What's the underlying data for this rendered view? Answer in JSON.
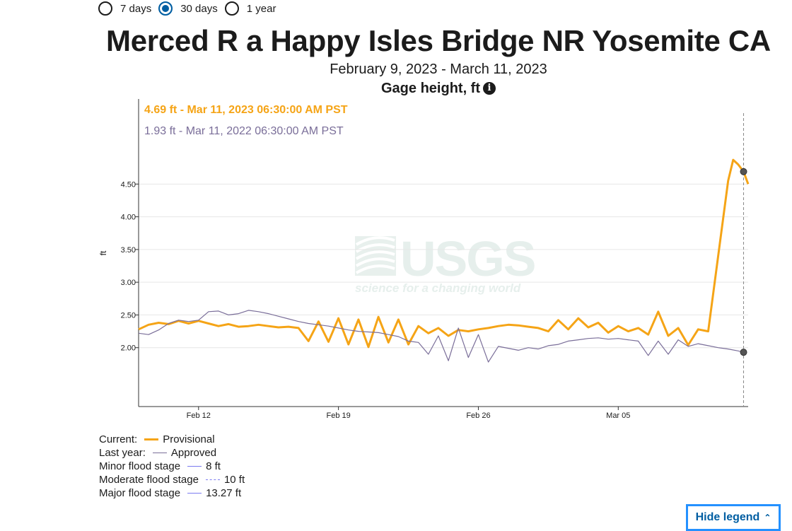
{
  "time_range": {
    "options": [
      {
        "label": "7 days",
        "selected": false
      },
      {
        "label": "30 days",
        "selected": true
      },
      {
        "label": "1 year",
        "selected": false
      }
    ]
  },
  "header": {
    "title": "Merced R a Happy Isles Bridge NR Yosemite CA",
    "subtitle": "February 9, 2023 - March 11, 2023",
    "parameter": "Gage height, ft",
    "info_icon": "info-icon"
  },
  "tooltip": {
    "current": "4.69 ft - Mar 11, 2023 06:30:00 AM PST",
    "last_year": "1.93 ft - Mar 11, 2022 06:30:00 AM PST"
  },
  "watermark": {
    "logo": "USGS",
    "tagline": "science for a changing world"
  },
  "colors": {
    "current": "#f5a416",
    "last_year": "#7a6e99",
    "flood": "#7b7bf0",
    "grid": "#e6e6e6",
    "watermark": "#e6efec"
  },
  "chart_data": {
    "type": "line",
    "ylabel": "ft",
    "y_ticks": [
      2.0,
      2.5,
      3.0,
      3.5,
      4.0,
      4.5
    ],
    "y_tick_labels": [
      "2.00",
      "2.50",
      "3.00",
      "3.50",
      "4.00",
      "4.50"
    ],
    "ylim": [
      1.1,
      5.8
    ],
    "xlim": [
      "2023-02-09",
      "2023-03-11"
    ],
    "x_ticks": [
      {
        "date": "2023-02-12",
        "label": "Feb 12"
      },
      {
        "date": "2023-02-19",
        "label": "Feb 19"
      },
      {
        "date": "2023-02-26",
        "label": "Feb 26"
      },
      {
        "date": "2023-03-05",
        "label": "Mar 05"
      }
    ],
    "cursor_date": "2023-03-11 06:30",
    "grid": true,
    "series": [
      {
        "name": "Provisional",
        "key": "current",
        "points": [
          [
            "2023-02-09 00:00",
            2.28
          ],
          [
            "2023-02-09 12:00",
            2.35
          ],
          [
            "2023-02-10 00:00",
            2.38
          ],
          [
            "2023-02-10 12:00",
            2.36
          ],
          [
            "2023-02-11 00:00",
            2.41
          ],
          [
            "2023-02-11 12:00",
            2.37
          ],
          [
            "2023-02-12 00:00",
            2.41
          ],
          [
            "2023-02-12 12:00",
            2.37
          ],
          [
            "2023-02-13 00:00",
            2.33
          ],
          [
            "2023-02-13 12:00",
            2.36
          ],
          [
            "2023-02-14 00:00",
            2.32
          ],
          [
            "2023-02-14 12:00",
            2.33
          ],
          [
            "2023-02-15 00:00",
            2.35
          ],
          [
            "2023-02-15 12:00",
            2.33
          ],
          [
            "2023-02-16 00:00",
            2.31
          ],
          [
            "2023-02-16 12:00",
            2.32
          ],
          [
            "2023-02-17 00:00",
            2.3
          ],
          [
            "2023-02-17 12:00",
            2.1
          ],
          [
            "2023-02-18 00:00",
            2.4
          ],
          [
            "2023-02-18 12:00",
            2.09
          ],
          [
            "2023-02-19 00:00",
            2.45
          ],
          [
            "2023-02-19 12:00",
            2.05
          ],
          [
            "2023-02-20 00:00",
            2.43
          ],
          [
            "2023-02-20 12:00",
            2.01
          ],
          [
            "2023-02-21 00:00",
            2.47
          ],
          [
            "2023-02-21 12:00",
            2.08
          ],
          [
            "2023-02-22 00:00",
            2.43
          ],
          [
            "2023-02-22 12:00",
            2.05
          ],
          [
            "2023-02-23 00:00",
            2.33
          ],
          [
            "2023-02-23 12:00",
            2.22
          ],
          [
            "2023-02-24 00:00",
            2.3
          ],
          [
            "2023-02-24 12:00",
            2.18
          ],
          [
            "2023-02-25 00:00",
            2.27
          ],
          [
            "2023-02-25 12:00",
            2.25
          ],
          [
            "2023-02-26 00:00",
            2.28
          ],
          [
            "2023-02-26 12:00",
            2.3
          ],
          [
            "2023-02-27 00:00",
            2.33
          ],
          [
            "2023-02-27 12:00",
            2.35
          ],
          [
            "2023-02-28 00:00",
            2.34
          ],
          [
            "2023-02-28 12:00",
            2.32
          ],
          [
            "2023-03-01 00:00",
            2.3
          ],
          [
            "2023-03-01 12:00",
            2.25
          ],
          [
            "2023-03-02 00:00",
            2.42
          ],
          [
            "2023-03-02 12:00",
            2.28
          ],
          [
            "2023-03-03 00:00",
            2.45
          ],
          [
            "2023-03-03 12:00",
            2.31
          ],
          [
            "2023-03-04 00:00",
            2.38
          ],
          [
            "2023-03-04 12:00",
            2.23
          ],
          [
            "2023-03-05 00:00",
            2.33
          ],
          [
            "2023-03-05 12:00",
            2.25
          ],
          [
            "2023-03-06 00:00",
            2.3
          ],
          [
            "2023-03-06 12:00",
            2.2
          ],
          [
            "2023-03-07 00:00",
            2.55
          ],
          [
            "2023-03-07 12:00",
            2.18
          ],
          [
            "2023-03-08 00:00",
            2.3
          ],
          [
            "2023-03-08 12:00",
            2.04
          ],
          [
            "2023-03-09 00:00",
            2.28
          ],
          [
            "2023-03-09 12:00",
            2.25
          ],
          [
            "2023-03-10 00:00",
            3.4
          ],
          [
            "2023-03-10 12:00",
            4.55
          ],
          [
            "2023-03-10 18:00",
            4.87
          ],
          [
            "2023-03-11 00:00",
            4.8
          ],
          [
            "2023-03-11 06:30",
            4.69
          ],
          [
            "2023-03-11 12:00",
            4.5
          ]
        ]
      },
      {
        "name": "Approved",
        "key": "last_year",
        "points": [
          [
            "2023-02-09 00:00",
            2.22
          ],
          [
            "2023-02-09 12:00",
            2.2
          ],
          [
            "2023-02-10 00:00",
            2.27
          ],
          [
            "2023-02-10 12:00",
            2.37
          ],
          [
            "2023-02-11 00:00",
            2.42
          ],
          [
            "2023-02-11 12:00",
            2.4
          ],
          [
            "2023-02-12 00:00",
            2.42
          ],
          [
            "2023-02-12 12:00",
            2.55
          ],
          [
            "2023-02-13 00:00",
            2.56
          ],
          [
            "2023-02-13 12:00",
            2.5
          ],
          [
            "2023-02-14 00:00",
            2.52
          ],
          [
            "2023-02-14 12:00",
            2.57
          ],
          [
            "2023-02-15 00:00",
            2.55
          ],
          [
            "2023-02-15 12:00",
            2.52
          ],
          [
            "2023-02-16 00:00",
            2.48
          ],
          [
            "2023-02-16 12:00",
            2.44
          ],
          [
            "2023-02-17 00:00",
            2.4
          ],
          [
            "2023-02-17 12:00",
            2.37
          ],
          [
            "2023-02-18 00:00",
            2.35
          ],
          [
            "2023-02-18 12:00",
            2.33
          ],
          [
            "2023-02-19 00:00",
            2.3
          ],
          [
            "2023-02-19 12:00",
            2.27
          ],
          [
            "2023-02-20 00:00",
            2.25
          ],
          [
            "2023-02-20 12:00",
            2.24
          ],
          [
            "2023-02-21 00:00",
            2.23
          ],
          [
            "2023-02-21 12:00",
            2.2
          ],
          [
            "2023-02-22 00:00",
            2.17
          ],
          [
            "2023-02-22 12:00",
            2.1
          ],
          [
            "2023-02-23 00:00",
            2.08
          ],
          [
            "2023-02-23 12:00",
            1.9
          ],
          [
            "2023-02-24 00:00",
            2.18
          ],
          [
            "2023-02-24 12:00",
            1.8
          ],
          [
            "2023-02-25 00:00",
            2.3
          ],
          [
            "2023-02-25 12:00",
            1.85
          ],
          [
            "2023-02-26 00:00",
            2.2
          ],
          [
            "2023-02-26 12:00",
            1.78
          ],
          [
            "2023-02-27 00:00",
            2.02
          ],
          [
            "2023-02-27 12:00",
            1.99
          ],
          [
            "2023-02-28 00:00",
            1.96
          ],
          [
            "2023-02-28 12:00",
            2.0
          ],
          [
            "2023-03-01 00:00",
            1.98
          ],
          [
            "2023-03-01 12:00",
            2.03
          ],
          [
            "2023-03-02 00:00",
            2.05
          ],
          [
            "2023-03-02 12:00",
            2.1
          ],
          [
            "2023-03-03 00:00",
            2.12
          ],
          [
            "2023-03-03 12:00",
            2.14
          ],
          [
            "2023-03-04 00:00",
            2.15
          ],
          [
            "2023-03-04 12:00",
            2.13
          ],
          [
            "2023-03-05 00:00",
            2.14
          ],
          [
            "2023-03-05 12:00",
            2.12
          ],
          [
            "2023-03-06 00:00",
            2.1
          ],
          [
            "2023-03-06 12:00",
            1.88
          ],
          [
            "2023-03-07 00:00",
            2.1
          ],
          [
            "2023-03-07 12:00",
            1.9
          ],
          [
            "2023-03-08 00:00",
            2.12
          ],
          [
            "2023-03-08 12:00",
            2.02
          ],
          [
            "2023-03-09 00:00",
            2.06
          ],
          [
            "2023-03-09 12:00",
            2.03
          ],
          [
            "2023-03-10 00:00",
            2.0
          ],
          [
            "2023-03-10 12:00",
            1.98
          ],
          [
            "2023-03-11 00:00",
            1.95
          ],
          [
            "2023-03-11 06:30",
            1.93
          ]
        ]
      }
    ]
  },
  "legend": {
    "rows": [
      {
        "label": "Current:",
        "item": "Provisional",
        "style": "solid",
        "color_key": "current"
      },
      {
        "label": "Last year:",
        "item": "Approved",
        "style": "solid",
        "color_key": "last_year"
      },
      {
        "label": "Minor flood stage",
        "item": "8 ft",
        "style": "solid",
        "color_key": "flood"
      },
      {
        "label": "Moderate flood stage",
        "item": "10 ft",
        "style": "dashdot",
        "color_key": "flood"
      },
      {
        "label": "Major flood stage",
        "item": "13.27 ft",
        "style": "solid",
        "color_key": "flood"
      }
    ],
    "hide_button": "Hide legend"
  }
}
